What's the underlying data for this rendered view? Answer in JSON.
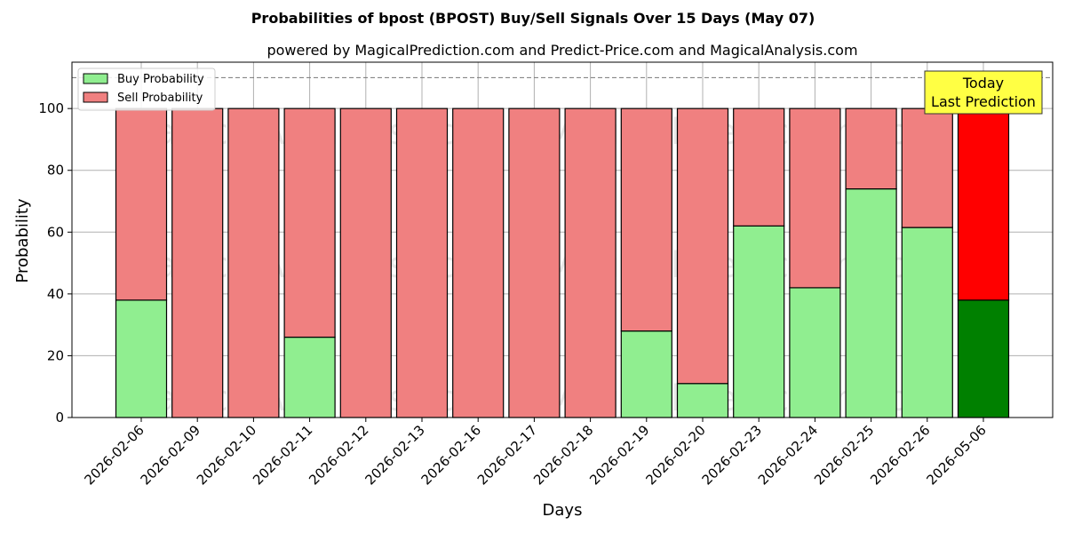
{
  "chart_data": {
    "type": "bar",
    "stacked": true,
    "title": "Probabilities of bpost (BPOST) Buy/Sell Signals Over 15 Days (May 07)",
    "subtitle": "powered by MagicalPrediction.com and Predict-Price.com and MagicalAnalysis.com",
    "xlabel": "Days",
    "ylabel": "Probability",
    "ylim": [
      0,
      115
    ],
    "yticks": [
      0,
      20,
      40,
      60,
      80,
      100
    ],
    "reference_line": 110,
    "grid": true,
    "legend_position": "top-left",
    "categories": [
      "2026-02-06",
      "2026-02-09",
      "2026-02-10",
      "2026-02-11",
      "2026-02-12",
      "2026-02-13",
      "2026-02-16",
      "2026-02-17",
      "2026-02-18",
      "2026-02-19",
      "2026-02-20",
      "2026-02-23",
      "2026-02-24",
      "2026-02-25",
      "2026-02-26",
      "2026-05-06"
    ],
    "series": [
      {
        "name": "Buy Probability",
        "color": "#90ee90",
        "highlight_color": "#008000",
        "values": [
          38,
          0,
          0,
          26,
          0,
          0,
          0,
          0,
          0,
          28,
          11,
          62,
          42,
          74,
          61.5,
          38
        ]
      },
      {
        "name": "Sell Probability",
        "color": "#f08080",
        "highlight_color": "#ff0000",
        "values": [
          62,
          100,
          100,
          74,
          100,
          100,
          100,
          100,
          100,
          72,
          89,
          38,
          58,
          26,
          38.5,
          62
        ]
      }
    ],
    "highlight_index": 15,
    "annotation": {
      "lines": [
        "Today",
        "Last Prediction"
      ],
      "background": "#ffff44"
    },
    "watermarks": [
      "MagicalAnalysis.com",
      "MagicalPrediction.com"
    ]
  }
}
